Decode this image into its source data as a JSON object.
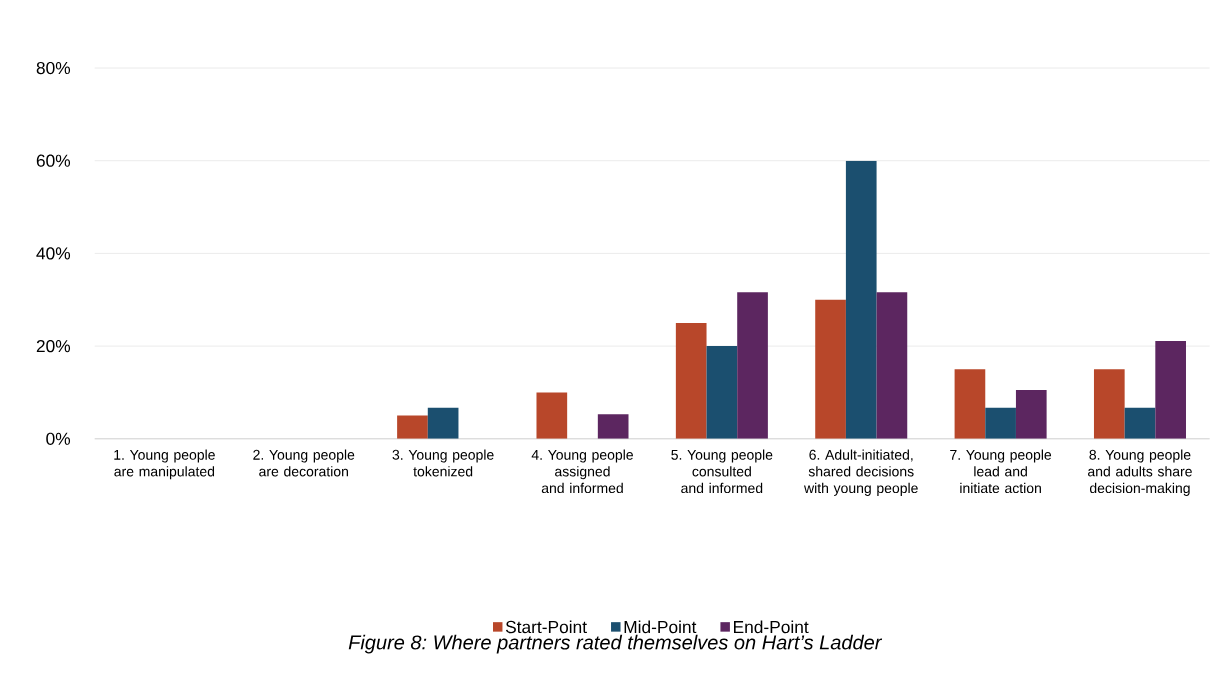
{
  "chart_data": {
    "type": "bar",
    "title": "Figure 8: Where partners rated themselves on Hart’s Ladder",
    "categories": [
      "1. Young people are manipulated",
      "2. Young people are decoration",
      "3. Young people tokenized",
      "4. Young people assigned and informed",
      "5. Young people consulted and informed",
      "6. Adult-initiated, shared decisions with young people",
      "7. Young people lead and initiate action",
      "8. Young people and adults share decision-making"
    ],
    "series": [
      {
        "name": "Start-Point",
        "color": "#b8472a",
        "values": [
          0,
          0,
          5,
          10,
          25,
          30,
          15,
          15
        ]
      },
      {
        "name": "Mid-Point",
        "color": "#1b4f6f",
        "values": [
          0,
          0,
          6.7,
          0,
          20,
          60,
          6.7,
          6.7
        ]
      },
      {
        "name": "End-Point",
        "color": "#5c2660",
        "values": [
          0,
          0,
          0,
          5.3,
          31.6,
          31.6,
          10.5,
          21.1
        ]
      }
    ],
    "ylim": [
      0,
      80
    ],
    "yticks": [
      {
        "value": 0,
        "label": "0%"
      },
      {
        "value": 20,
        "label": "20%"
      },
      {
        "value": 40,
        "label": "40%"
      },
      {
        "value": 60,
        "label": "60%"
      },
      {
        "value": 80,
        "label": "80%"
      }
    ],
    "grid": "y",
    "legend": "bottom"
  }
}
